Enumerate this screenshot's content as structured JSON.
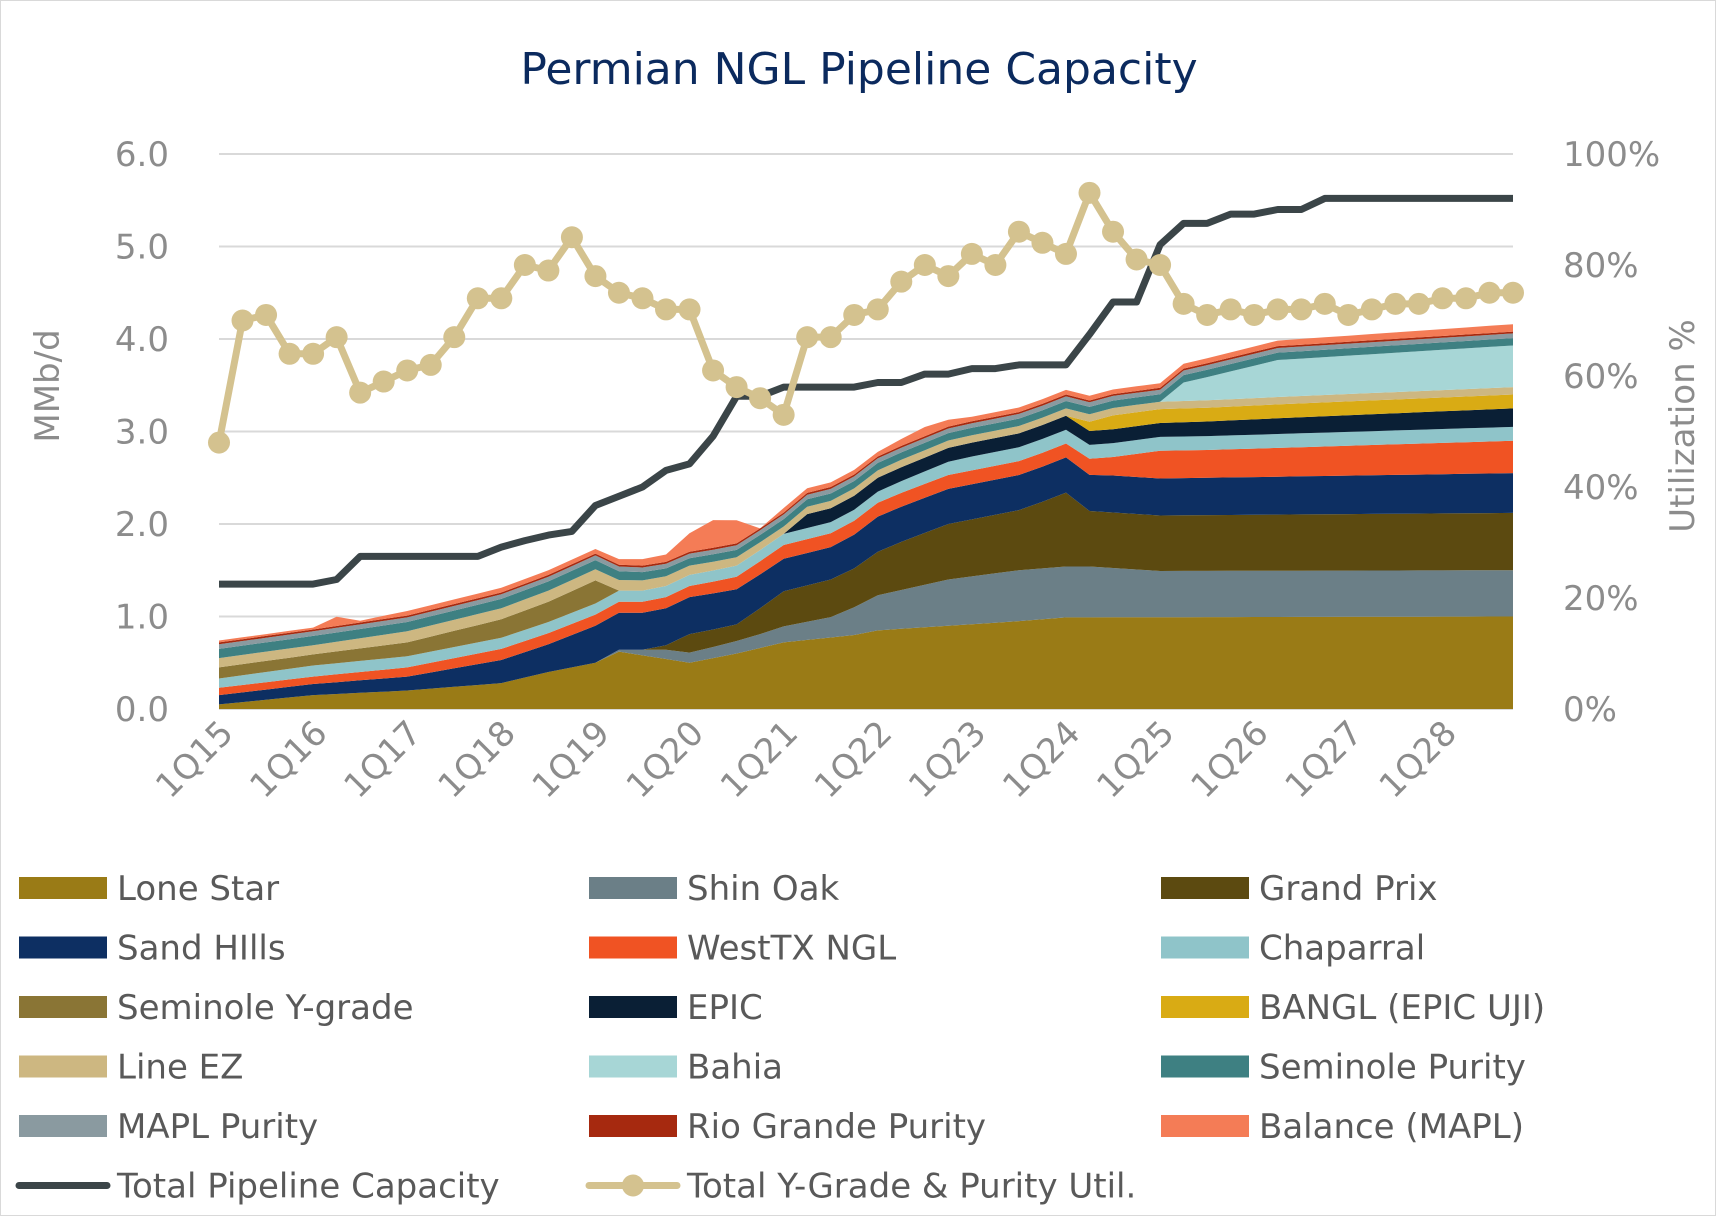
{
  "chart_data": {
    "type": "area",
    "title": "Permian NGL Pipeline Capacity",
    "ylabel": "MMb/d",
    "y2label": "Utilization %",
    "ylim": [
      0,
      6
    ],
    "y2lim": [
      0,
      100
    ],
    "yticks": [
      "0.0",
      "1.0",
      "2.0",
      "3.0",
      "4.0",
      "5.0",
      "6.0"
    ],
    "y2ticks": [
      "0%",
      "20%",
      "40%",
      "60%",
      "80%",
      "100%"
    ],
    "xtick_labels": [
      "1Q15",
      "1Q16",
      "1Q17",
      "1Q18",
      "1Q19",
      "1Q20",
      "1Q21",
      "1Q22",
      "1Q23",
      "1Q24",
      "1Q25",
      "1Q26",
      "1Q27",
      "1Q28"
    ],
    "period_start": "1Q15",
    "periods": 56,
    "grid": true,
    "legend_position": "bottom",
    "stacked_series": [
      {
        "name": "Lone Star",
        "color": "#9a7b16",
        "keys": [
          [
            0,
            0.05
          ],
          [
            4,
            0.15
          ],
          [
            8,
            0.2
          ],
          [
            12,
            0.28
          ],
          [
            14,
            0.4
          ],
          [
            16,
            0.5
          ],
          [
            17,
            0.62
          ],
          [
            20,
            0.5
          ],
          [
            22,
            0.6
          ],
          [
            24,
            0.72
          ],
          [
            27,
            0.8
          ],
          [
            28,
            0.85
          ],
          [
            31,
            0.9
          ],
          [
            34,
            0.95
          ],
          [
            36,
            0.99
          ],
          [
            55,
            1.0
          ]
        ]
      },
      {
        "name": "Shin Oak",
        "color": "#6b7f87",
        "keys": [
          [
            0,
            0
          ],
          [
            16,
            0
          ],
          [
            17,
            0.02
          ],
          [
            19,
            0.1
          ],
          [
            21,
            0.12
          ],
          [
            23,
            0.15
          ],
          [
            26,
            0.22
          ],
          [
            28,
            0.38
          ],
          [
            31,
            0.5
          ],
          [
            34,
            0.55
          ],
          [
            37,
            0.55
          ],
          [
            40,
            0.5
          ],
          [
            55,
            0.5
          ]
        ]
      },
      {
        "name": "Grand Prix",
        "color": "#5c4a10",
        "keys": [
          [
            0,
            0
          ],
          [
            18,
            0
          ],
          [
            19,
            0.05
          ],
          [
            20,
            0.2
          ],
          [
            22,
            0.18
          ],
          [
            24,
            0.38
          ],
          [
            27,
            0.42
          ],
          [
            29,
            0.52
          ],
          [
            31,
            0.6
          ],
          [
            34,
            0.65
          ],
          [
            35,
            0.72
          ],
          [
            36,
            0.8
          ],
          [
            37,
            0.6
          ],
          [
            40,
            0.6
          ],
          [
            55,
            0.62
          ]
        ]
      },
      {
        "name": "Sand HIlls",
        "color": "#0d2f62",
        "keys": [
          [
            0,
            0.1
          ],
          [
            4,
            0.12
          ],
          [
            8,
            0.15
          ],
          [
            12,
            0.25
          ],
          [
            14,
            0.3
          ],
          [
            16,
            0.4
          ],
          [
            18,
            0.4
          ],
          [
            20,
            0.4
          ],
          [
            22,
            0.38
          ],
          [
            24,
            0.35
          ],
          [
            26,
            0.35
          ],
          [
            28,
            0.38
          ],
          [
            30,
            0.38
          ],
          [
            32,
            0.38
          ],
          [
            34,
            0.38
          ],
          [
            36,
            0.38
          ],
          [
            38,
            0.4
          ],
          [
            40,
            0.4
          ],
          [
            55,
            0.43
          ]
        ]
      },
      {
        "name": "WestTX NGL",
        "color": "#f05323",
        "keys": [
          [
            0,
            0.08
          ],
          [
            4,
            0.08
          ],
          [
            8,
            0.1
          ],
          [
            12,
            0.12
          ],
          [
            16,
            0.12
          ],
          [
            20,
            0.12
          ],
          [
            24,
            0.15
          ],
          [
            28,
            0.15
          ],
          [
            32,
            0.15
          ],
          [
            36,
            0.15
          ],
          [
            38,
            0.2
          ],
          [
            40,
            0.3
          ],
          [
            42,
            0.3
          ],
          [
            55,
            0.35
          ]
        ]
      },
      {
        "name": "Chaparral",
        "color": "#8fc4c9",
        "keys": [
          [
            0,
            0.1
          ],
          [
            4,
            0.12
          ],
          [
            8,
            0.12
          ],
          [
            12,
            0.12
          ],
          [
            16,
            0.12
          ],
          [
            20,
            0.12
          ],
          [
            24,
            0.12
          ],
          [
            28,
            0.12
          ],
          [
            32,
            0.15
          ],
          [
            36,
            0.15
          ],
          [
            40,
            0.15
          ],
          [
            55,
            0.15
          ]
        ]
      },
      {
        "name": "Seminole Y-grade",
        "color": "#8a7535",
        "keys": [
          [
            0,
            0.12
          ],
          [
            4,
            0.12
          ],
          [
            8,
            0.15
          ],
          [
            12,
            0.2
          ],
          [
            14,
            0.22
          ],
          [
            16,
            0.25
          ],
          [
            17,
            0
          ],
          [
            55,
            0
          ]
        ]
      },
      {
        "name": "EPIC",
        "color": "#0a1f35",
        "keys": [
          [
            0,
            0
          ],
          [
            24,
            0
          ],
          [
            25,
            0.15
          ],
          [
            28,
            0.15
          ],
          [
            32,
            0.15
          ],
          [
            36,
            0.15
          ],
          [
            40,
            0.15
          ],
          [
            45,
            0.17
          ],
          [
            55,
            0.2
          ]
        ]
      },
      {
        "name": "BANGL (EPIC UJI)",
        "color": "#d9ab14",
        "keys": [
          [
            0,
            0
          ],
          [
            36,
            0
          ],
          [
            37,
            0.1
          ],
          [
            38,
            0.15
          ],
          [
            55,
            0.15
          ]
        ]
      },
      {
        "name": "Line EZ",
        "color": "#cdb781",
        "keys": [
          [
            0,
            0.1
          ],
          [
            4,
            0.1
          ],
          [
            8,
            0.12
          ],
          [
            12,
            0.12
          ],
          [
            16,
            0.12
          ],
          [
            20,
            0.1
          ],
          [
            24,
            0.08
          ],
          [
            28,
            0.08
          ],
          [
            32,
            0.08
          ],
          [
            36,
            0.08
          ],
          [
            40,
            0.08
          ],
          [
            55,
            0.08
          ]
        ]
      },
      {
        "name": "Bahia",
        "color": "#a7d6d6",
        "keys": [
          [
            0,
            0
          ],
          [
            40,
            0
          ],
          [
            41,
            0.2
          ],
          [
            43,
            0.3
          ],
          [
            45,
            0.4
          ],
          [
            55,
            0.45
          ]
        ]
      },
      {
        "name": "Seminole Purity",
        "color": "#3e8082",
        "keys": [
          [
            0,
            0.1
          ],
          [
            4,
            0.1
          ],
          [
            8,
            0.1
          ],
          [
            12,
            0.1
          ],
          [
            16,
            0.1
          ],
          [
            20,
            0.08
          ],
          [
            24,
            0.08
          ],
          [
            28,
            0.08
          ],
          [
            32,
            0.08
          ],
          [
            36,
            0.08
          ],
          [
            40,
            0.08
          ],
          [
            55,
            0.08
          ]
        ]
      },
      {
        "name": "MAPL Purity",
        "color": "#8a9aa0",
        "keys": [
          [
            0,
            0.05
          ],
          [
            4,
            0.05
          ],
          [
            8,
            0.05
          ],
          [
            12,
            0.05
          ],
          [
            16,
            0.05
          ],
          [
            20,
            0.05
          ],
          [
            24,
            0.05
          ],
          [
            28,
            0.05
          ],
          [
            32,
            0.05
          ],
          [
            36,
            0.05
          ],
          [
            40,
            0.05
          ],
          [
            55,
            0.05
          ]
        ]
      },
      {
        "name": "Rio Grande Purity",
        "color": "#a6290f",
        "keys": [
          [
            0,
            0.02
          ],
          [
            24,
            0.02
          ],
          [
            28,
            0.02
          ],
          [
            32,
            0.02
          ],
          [
            36,
            0.02
          ],
          [
            40,
            0.02
          ],
          [
            55,
            0.02
          ]
        ]
      },
      {
        "name": "Balance (MAPL)",
        "color": "#f47c56",
        "keys": [
          [
            0,
            0.02
          ],
          [
            4,
            0.02
          ],
          [
            5,
            0.1
          ],
          [
            6,
            0.02
          ],
          [
            8,
            0.05
          ],
          [
            12,
            0.05
          ],
          [
            16,
            0.05
          ],
          [
            19,
            0.08
          ],
          [
            20,
            0.2
          ],
          [
            21,
            0.3
          ],
          [
            22,
            0.25
          ],
          [
            23,
            0
          ],
          [
            24,
            0.05
          ],
          [
            28,
            0.05
          ],
          [
            30,
            0.1
          ],
          [
            32,
            0.05
          ],
          [
            36,
            0.05
          ],
          [
            40,
            0.05
          ],
          [
            55,
            0.08
          ]
        ]
      }
    ],
    "line_series": [
      {
        "name": "Total Pipeline Capacity",
        "color": "#3b4548",
        "axis": "left",
        "marker": false,
        "values": [
          1.35,
          1.35,
          1.35,
          1.35,
          1.35,
          1.4,
          1.65,
          1.65,
          1.65,
          1.65,
          1.65,
          1.65,
          1.75,
          1.82,
          1.88,
          1.92,
          2.2,
          2.3,
          2.4,
          2.58,
          2.65,
          2.95,
          3.38,
          3.38,
          3.48,
          3.48,
          3.48,
          3.48,
          3.53,
          3.53,
          3.62,
          3.62,
          3.68,
          3.68,
          3.72,
          3.72,
          3.72,
          4.05,
          4.4,
          4.4,
          5.02,
          5.25,
          5.25,
          5.35,
          5.35,
          5.4,
          5.4,
          5.52,
          5.52,
          5.52,
          5.52,
          5.52,
          5.52,
          5.52,
          5.52,
          5.52
        ]
      },
      {
        "name": "Total Y-Grade & Purity Util.",
        "color": "#d4c28f",
        "axis": "right",
        "marker": true,
        "values": [
          48,
          70,
          71,
          64,
          64,
          67,
          57,
          59,
          61,
          62,
          67,
          74,
          74,
          80,
          79,
          85,
          78,
          75,
          74,
          72,
          72,
          61,
          58,
          56,
          53,
          67,
          67,
          71,
          72,
          77,
          80,
          78,
          82,
          80,
          86,
          84,
          82,
          93,
          86,
          81,
          80,
          73,
          71,
          72,
          71,
          72,
          72,
          73,
          71,
          72,
          73,
          73,
          74,
          74,
          75,
          75
        ]
      }
    ]
  }
}
